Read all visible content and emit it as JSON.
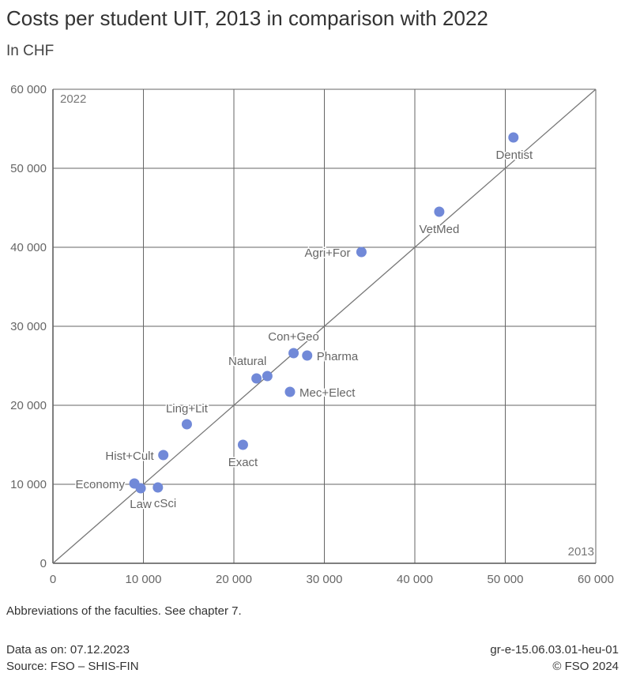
{
  "chart_data": {
    "type": "scatter",
    "title": "Costs per student UIT, 2013 in comparison with 2022",
    "subtitle": "In CHF",
    "xlabel": "2013",
    "ylabel": "2022",
    "xlim": [
      0,
      60000
    ],
    "ylim": [
      0,
      60000
    ],
    "x_ticks": [
      "0",
      "10 000",
      "20 000",
      "30 000",
      "40 000",
      "50 000",
      "60 000"
    ],
    "y_ticks": [
      "0",
      "10 000",
      "20 000",
      "30 000",
      "40 000",
      "50 000",
      "60 000"
    ],
    "grid": true,
    "diagonal_reference_line": true,
    "point_color": "#7189d8",
    "points": [
      {
        "label": "Dentist",
        "x": 50900,
        "y": 53900
      },
      {
        "label": "VetMed",
        "x": 42700,
        "y": 44500
      },
      {
        "label": "Agri+For",
        "x": 34100,
        "y": 39400
      },
      {
        "label": "Con+Geo",
        "x": 26600,
        "y": 26600
      },
      {
        "label": "Pharma",
        "x": 28100,
        "y": 26300
      },
      {
        "label": "Natural",
        "x": 23700,
        "y": 23700
      },
      {
        "label": "",
        "x": 22500,
        "y": 23400
      },
      {
        "label": "Mec+Elect",
        "x": 26200,
        "y": 21700
      },
      {
        "label": "Ling+Lit",
        "x": 14800,
        "y": 17600
      },
      {
        "label": "Exact",
        "x": 21000,
        "y": 15000
      },
      {
        "label": "Hist+Cult",
        "x": 12200,
        "y": 13700
      },
      {
        "label": "Economy",
        "x": 9000,
        "y": 10100
      },
      {
        "label": "Law",
        "x": 9700,
        "y": 9500
      },
      {
        "label": "cSci",
        "x": 11600,
        "y": 9600
      }
    ]
  },
  "note": "Abbreviations of the faculties. See chapter 7.",
  "footer": {
    "data_as_on": "Data as on: 07.12.2023",
    "source": "Source: FSO – SHIS-FIN",
    "code": "gr-e-15.06.03.01-heu-01",
    "copyright": "© FSO 2024"
  }
}
